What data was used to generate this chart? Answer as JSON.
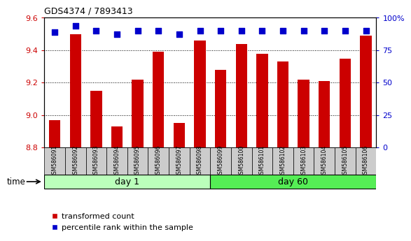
{
  "title": "GDS4374 / 7893413",
  "samples": [
    "GSM586091",
    "GSM586092",
    "GSM586093",
    "GSM586094",
    "GSM586095",
    "GSM586096",
    "GSM586097",
    "GSM586098",
    "GSM586099",
    "GSM586100",
    "GSM586101",
    "GSM586102",
    "GSM586103",
    "GSM586104",
    "GSM586105",
    "GSM586106"
  ],
  "red_values": [
    8.97,
    9.5,
    9.15,
    8.93,
    9.22,
    9.39,
    8.95,
    9.46,
    9.28,
    9.44,
    9.38,
    9.33,
    9.22,
    9.21,
    9.35,
    9.49
  ],
  "blue_values_left": [
    9.51,
    9.55,
    9.52,
    9.5,
    9.52,
    9.52,
    9.5,
    9.52,
    9.52,
    9.52,
    9.52,
    9.52,
    9.52,
    9.52,
    9.52,
    9.52
  ],
  "ylim_left": [
    8.8,
    9.6
  ],
  "ylim_right": [
    0,
    100
  ],
  "yticks_left": [
    8.8,
    9.0,
    9.2,
    9.4,
    9.6
  ],
  "yticks_right": [
    0,
    25,
    50,
    75,
    100
  ],
  "ytick_labels_right": [
    "0",
    "25",
    "50",
    "75",
    "100%"
  ],
  "group_day1_color": "#BBFFBB",
  "group_day60_color": "#55EE55",
  "bar_color": "#CC0000",
  "dot_color": "#0000CC",
  "label_bg_color": "#CCCCCC",
  "grid_color": "#000000",
  "legend_labels": [
    "transformed count",
    "percentile rank within the sample"
  ],
  "bar_width": 0.55,
  "dot_size": 40,
  "xlabel_time": "time"
}
